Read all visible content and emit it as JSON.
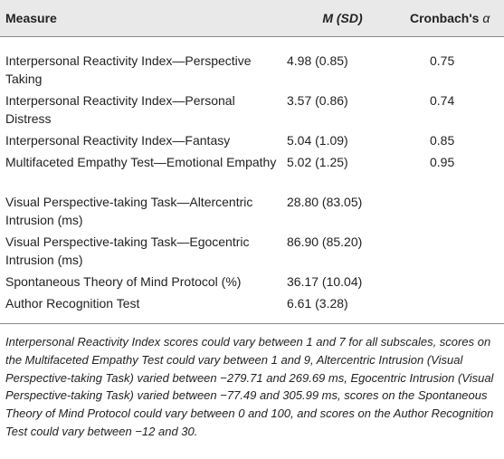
{
  "table": {
    "headers": {
      "measure": "Measure",
      "msd_m": "M",
      "msd_sd": "(SD)",
      "alpha": "Cronbach's ",
      "alpha_symbol": "α"
    },
    "rows": [
      {
        "measure": "Interpersonal Reactivity Index—Perspective Taking",
        "msd": "4.98 (0.85)",
        "alpha": "0.75"
      },
      {
        "measure": "Interpersonal Reactivity Index—Personal Distress",
        "msd": "3.57 (0.86)",
        "alpha": "0.74"
      },
      {
        "measure": "Interpersonal Reactivity Index—Fantasy",
        "msd": "5.04 (1.09)",
        "alpha": "0.85"
      },
      {
        "measure": "Multifaceted Empathy Test—Emotional Empathy",
        "msd": "5.02 (1.25)",
        "alpha": "0.95"
      },
      {
        "measure": "Visual Perspective-taking Task—Altercentric Intrusion (ms)",
        "msd": "28.80 (83.05)",
        "alpha": ""
      },
      {
        "measure": "Visual Perspective-taking Task—Egocentric Intrusion (ms)",
        "msd": "86.90 (85.20)",
        "alpha": ""
      },
      {
        "measure": "Spontaneous Theory of Mind Protocol (%)",
        "msd": "36.17 (10.04)",
        "alpha": ""
      },
      {
        "measure": "Author Recognition Test",
        "msd": "6.61 (3.28)",
        "alpha": ""
      }
    ]
  },
  "note": "Interpersonal Reactivity Index scores could vary between 1 and 7 for all subscales, scores on the Multifaceted Empathy Test could vary between 1 and 9, Altercentric Intrusion (Visual Perspective-taking Task) varied between −279.71 and 269.69 ms, Egocentric Intrusion (Visual Perspective-taking Task) varied between −77.49 and 305.99 ms, scores on the Spontaneous Theory of Mind Protocol could vary between 0 and 100, and scores on the Author Recognition Test could vary between −12 and 30."
}
